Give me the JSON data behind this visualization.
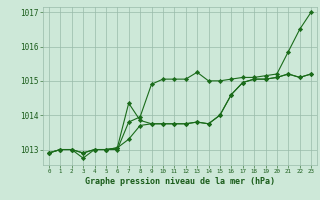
{
  "xlabel": "Graphe pression niveau de la mer (hPa)",
  "hours": [
    0,
    1,
    2,
    3,
    4,
    5,
    6,
    7,
    8,
    9,
    10,
    11,
    12,
    13,
    14,
    15,
    16,
    17,
    18,
    19,
    20,
    21,
    22,
    23
  ],
  "line1": [
    1012.9,
    1013.0,
    1013.0,
    1012.75,
    1013.0,
    1013.0,
    1013.0,
    1013.8,
    1013.95,
    1014.9,
    1015.05,
    1015.05,
    1015.05,
    1015.25,
    1015.0,
    1015.0,
    1015.05,
    1015.1,
    1015.1,
    1015.15,
    1015.2,
    1015.85,
    1016.5,
    1017.0
  ],
  "line2": [
    1012.9,
    1013.0,
    1013.0,
    1012.9,
    1013.0,
    1013.0,
    1013.05,
    1014.35,
    1013.85,
    1013.75,
    1013.75,
    1013.75,
    1013.75,
    1013.8,
    1013.75,
    1014.0,
    1014.6,
    1014.95,
    1015.05,
    1015.05,
    1015.1,
    1015.2,
    1015.1,
    1015.2
  ],
  "line3": [
    1012.9,
    1013.0,
    1013.0,
    1012.9,
    1013.0,
    1013.0,
    1013.05,
    1013.3,
    1013.7,
    1013.75,
    1013.75,
    1013.75,
    1013.75,
    1013.8,
    1013.75,
    1014.0,
    1014.6,
    1014.95,
    1015.05,
    1015.05,
    1015.1,
    1015.2,
    1015.1,
    1015.2
  ],
  "line_color": "#1a6b1a",
  "bg_color": "#cde8d8",
  "grid_color": "#99bbaa",
  "text_color": "#1a5c1a",
  "ylim": [
    1012.55,
    1017.15
  ],
  "yticks": [
    1013,
    1014,
    1015,
    1016,
    1017
  ],
  "xlim": [
    -0.5,
    23.5
  ]
}
